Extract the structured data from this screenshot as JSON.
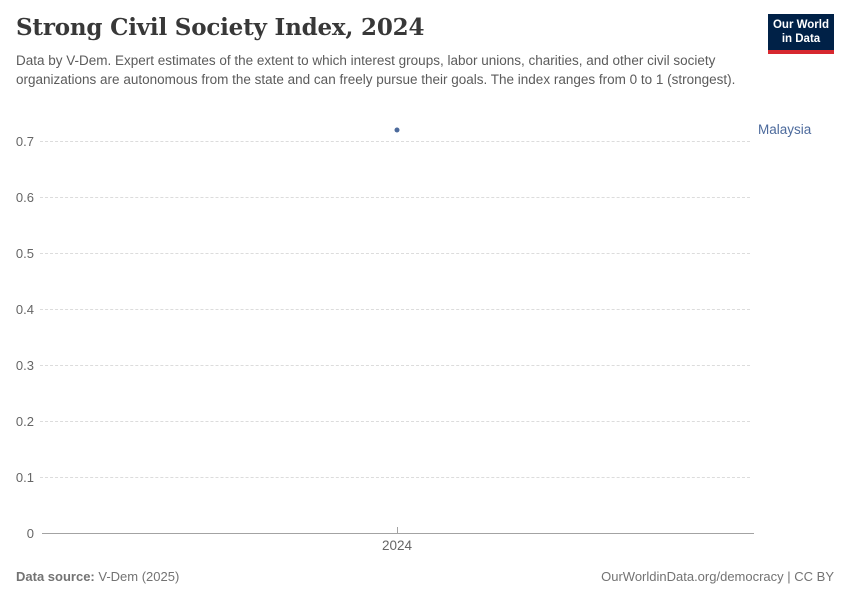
{
  "header": {
    "title": "Strong Civil Society Index, 2024",
    "subtitle": "Data by V-Dem. Expert estimates of the extent to which interest groups, labor unions, charities, and other civil society organizations are autonomous from the state and can freely pursue their goals. The index ranges from 0 to 1 (strongest).",
    "logo": {
      "line1": "Our World",
      "line2": "in Data",
      "bg_color": "#002147",
      "accent_color": "#d7282f"
    }
  },
  "chart_data": {
    "type": "scatter",
    "title": "Strong Civil Society Index, 2024",
    "x": [
      2024
    ],
    "series": [
      {
        "name": "Malaysia",
        "values": [
          0.72
        ],
        "color": "#4c6a9c"
      }
    ],
    "xlabel": "",
    "ylabel": "",
    "ylim": [
      0,
      0.73
    ],
    "yticks": [
      0,
      0.1,
      0.2,
      0.3,
      0.4,
      0.5,
      0.6,
      0.7
    ],
    "xticks": [
      "2024"
    ],
    "grid": "horizontal-dashed",
    "legend_position": "right-entity-label"
  },
  "footer": {
    "source_label": "Data source:",
    "source_value": "V-Dem (2025)",
    "right_text": "OurWorldinData.org/democracy | CC BY"
  }
}
